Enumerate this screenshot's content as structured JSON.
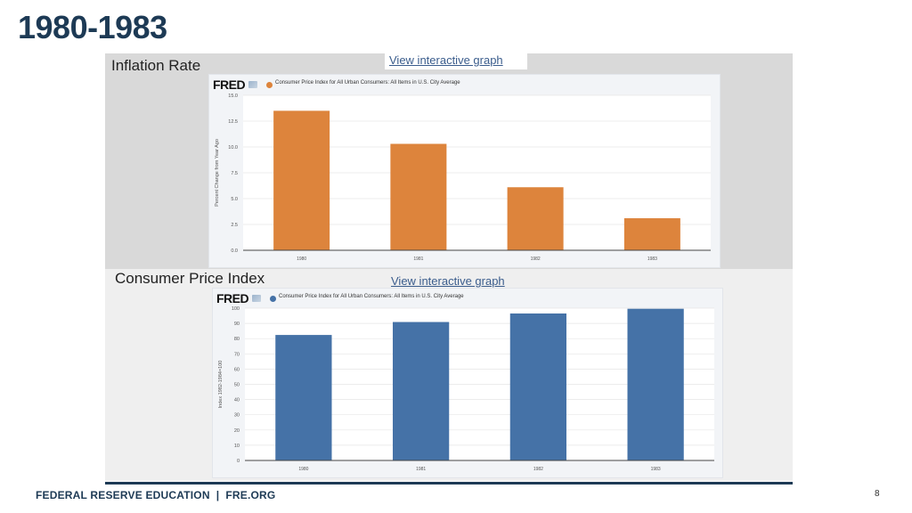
{
  "slide": {
    "title": "1980-1983",
    "footer": "FEDERAL RESERVE EDUCATION  |  FRE.ORG",
    "page_number": "8"
  },
  "sections": [
    {
      "label": "Inflation Rate",
      "link": "View interactive graph"
    },
    {
      "label": "Consumer Price Index",
      "link": "View interactive graph"
    }
  ],
  "colors": {
    "title": "#1d3a55",
    "orange_bar": "#dd843c",
    "blue_bar": "#4572a7"
  },
  "chart_data": [
    {
      "type": "bar",
      "brand": "FRED",
      "legend": "Consumer Price Index for All Urban Consumers: All Items in U.S. City Average",
      "categories": [
        "1980",
        "1981",
        "1982",
        "1983"
      ],
      "values": [
        13.5,
        10.3,
        6.1,
        3.1
      ],
      "ylabel": "Percent Change from Year Ago",
      "ylim": [
        0,
        15
      ],
      "yticks": [
        "0.0",
        "2.5",
        "5.0",
        "7.5",
        "10.0",
        "12.5",
        "15.0"
      ],
      "grid": true,
      "color": "#dd843c"
    },
    {
      "type": "bar",
      "brand": "FRED",
      "legend": "Consumer Price Index for All Urban Consumers: All Items in U.S. City Average",
      "categories": [
        "1980",
        "1981",
        "1982",
        "1983"
      ],
      "values": [
        82.4,
        90.9,
        96.5,
        99.6
      ],
      "ylabel": "Index 1982-1984=100",
      "ylim": [
        0,
        100
      ],
      "yticks": [
        "0",
        "10",
        "20",
        "30",
        "40",
        "50",
        "60",
        "70",
        "80",
        "90",
        "100"
      ],
      "grid": true,
      "color": "#4572a7"
    }
  ]
}
